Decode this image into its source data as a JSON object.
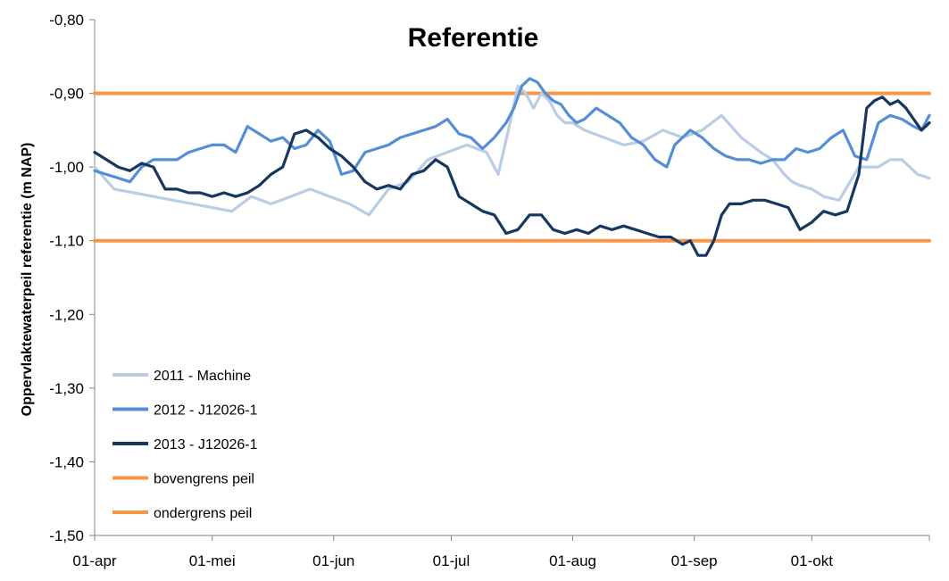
{
  "chart_data": {
    "type": "line",
    "title": "Referentie",
    "ylabel": "Oppervlaktewaterpeil referentie (m NAP)",
    "xlabel": "",
    "ylim": [
      -1.5,
      -0.8
    ],
    "xlim": [
      0,
      213
    ],
    "y_ticks": [
      -0.8,
      -0.9,
      -1.0,
      -1.1,
      -1.2,
      -1.3,
      -1.4,
      -1.5
    ],
    "y_tick_labels": [
      "-0,80",
      "-0,90",
      "-1,00",
      "-1,10",
      "-1,20",
      "-1,30",
      "-1,40",
      "-1,50"
    ],
    "x_ticks": [
      0,
      30,
      61,
      91,
      122,
      153,
      183
    ],
    "x_tick_labels": [
      "01-apr",
      "01-mei",
      "01-jun",
      "01-jul",
      "01-aug",
      "01-sep",
      "01-okt"
    ],
    "grid": false,
    "legend_position": "bottom-left",
    "series": [
      {
        "name": "2011 - Machine",
        "color": "#b9cde5",
        "x": [
          0,
          5,
          10,
          15,
          20,
          25,
          30,
          35,
          40,
          45,
          50,
          55,
          60,
          65,
          70,
          75,
          80,
          85,
          90,
          95,
          100,
          103,
          106,
          108,
          110,
          112,
          114,
          116,
          118,
          120,
          122,
          125,
          130,
          135,
          140,
          145,
          150,
          155,
          160,
          165,
          170,
          173,
          176,
          178,
          180,
          183,
          186,
          190,
          195,
          200,
          203,
          206,
          210,
          213
        ],
        "y": [
          -1.0,
          -1.03,
          -1.035,
          -1.04,
          -1.045,
          -1.05,
          -1.055,
          -1.06,
          -1.04,
          -1.05,
          -1.04,
          -1.03,
          -1.04,
          -1.05,
          -1.065,
          -1.03,
          -1.02,
          -0.99,
          -0.98,
          -0.97,
          -0.98,
          -1.01,
          -0.94,
          -0.89,
          -0.9,
          -0.92,
          -0.9,
          -0.91,
          -0.93,
          -0.94,
          -0.94,
          -0.95,
          -0.96,
          -0.97,
          -0.965,
          -0.95,
          -0.96,
          -0.95,
          -0.93,
          -0.96,
          -0.98,
          -0.99,
          -1.01,
          -1.02,
          -1.025,
          -1.03,
          -1.04,
          -1.045,
          -1.0,
          -1.0,
          -0.99,
          -0.99,
          -1.01,
          -1.015
        ]
      },
      {
        "name": "2012 - J12026-1",
        "color": "#558ed5",
        "x": [
          0,
          3,
          6,
          9,
          12,
          15,
          18,
          21,
          24,
          27,
          30,
          33,
          36,
          39,
          42,
          45,
          48,
          51,
          54,
          57,
          60,
          63,
          66,
          69,
          72,
          75,
          78,
          81,
          84,
          87,
          90,
          93,
          96,
          99,
          102,
          105,
          107,
          109,
          111,
          113,
          115,
          117,
          119,
          121,
          123,
          125,
          128,
          131,
          134,
          137,
          140,
          143,
          146,
          148,
          150,
          152,
          155,
          158,
          161,
          164,
          167,
          170,
          173,
          176,
          179,
          182,
          185,
          188,
          191,
          194,
          197,
          200,
          203,
          206,
          209,
          211,
          213
        ],
        "y": [
          -1.005,
          -1.01,
          -1.015,
          -1.02,
          -1.0,
          -0.99,
          -0.99,
          -0.99,
          -0.98,
          -0.975,
          -0.97,
          -0.97,
          -0.98,
          -0.945,
          -0.955,
          -0.965,
          -0.96,
          -0.975,
          -0.97,
          -0.95,
          -0.965,
          -1.01,
          -1.005,
          -0.98,
          -0.975,
          -0.97,
          -0.96,
          -0.955,
          -0.95,
          -0.945,
          -0.935,
          -0.955,
          -0.96,
          -0.975,
          -0.96,
          -0.94,
          -0.92,
          -0.89,
          -0.88,
          -0.885,
          -0.9,
          -0.91,
          -0.915,
          -0.93,
          -0.94,
          -0.935,
          -0.92,
          -0.93,
          -0.94,
          -0.96,
          -0.97,
          -0.99,
          -1.0,
          -0.97,
          -0.96,
          -0.95,
          -0.96,
          -0.975,
          -0.985,
          -0.99,
          -0.99,
          -0.995,
          -0.99,
          -0.99,
          -0.975,
          -0.98,
          -0.975,
          -0.96,
          -0.95,
          -0.985,
          -0.99,
          -0.94,
          -0.93,
          -0.935,
          -0.945,
          -0.95,
          -0.93
        ]
      },
      {
        "name": "2013 - J12026-1",
        "color": "#17375e",
        "x": [
          0,
          3,
          6,
          9,
          12,
          15,
          18,
          21,
          24,
          27,
          30,
          33,
          36,
          39,
          42,
          45,
          48,
          51,
          54,
          57,
          60,
          63,
          66,
          69,
          72,
          75,
          78,
          81,
          84,
          87,
          90,
          93,
          96,
          99,
          102,
          105,
          108,
          111,
          114,
          117,
          120,
          123,
          126,
          129,
          132,
          135,
          138,
          141,
          144,
          147,
          150,
          152,
          154,
          156,
          158,
          160,
          162,
          165,
          168,
          171,
          174,
          177,
          180,
          183,
          186,
          189,
          192,
          195,
          197,
          199,
          201,
          203,
          205,
          207,
          209,
          211,
          213
        ],
        "y": [
          -0.98,
          -0.99,
          -1.0,
          -1.005,
          -0.995,
          -1.0,
          -1.03,
          -1.03,
          -1.035,
          -1.035,
          -1.04,
          -1.035,
          -1.04,
          -1.035,
          -1.025,
          -1.01,
          -1.0,
          -0.955,
          -0.95,
          -0.96,
          -0.975,
          -0.985,
          -1.0,
          -1.02,
          -1.03,
          -1.025,
          -1.03,
          -1.01,
          -1.005,
          -0.99,
          -1.0,
          -1.04,
          -1.05,
          -1.06,
          -1.065,
          -1.09,
          -1.085,
          -1.065,
          -1.065,
          -1.085,
          -1.09,
          -1.085,
          -1.09,
          -1.08,
          -1.085,
          -1.08,
          -1.085,
          -1.09,
          -1.095,
          -1.095,
          -1.105,
          -1.1,
          -1.12,
          -1.12,
          -1.1,
          -1.065,
          -1.05,
          -1.05,
          -1.045,
          -1.045,
          -1.05,
          -1.055,
          -1.085,
          -1.075,
          -1.06,
          -1.065,
          -1.06,
          -1.01,
          -0.92,
          -0.91,
          -0.905,
          -0.915,
          -0.91,
          -0.92,
          -0.935,
          -0.95,
          -0.94
        ]
      },
      {
        "name": "bovengrens peil",
        "color": "#f79646",
        "x": [
          0,
          213
        ],
        "y": [
          -0.9,
          -0.9
        ]
      },
      {
        "name": "ondergrens peil",
        "color": "#f79646",
        "x": [
          0,
          213
        ],
        "y": [
          -1.1,
          -1.1
        ]
      }
    ]
  }
}
